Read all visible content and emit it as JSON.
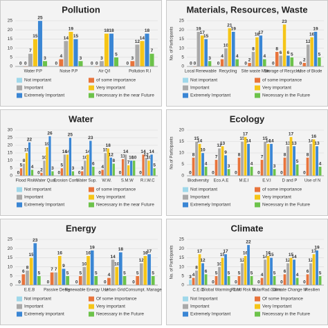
{
  "chart_data": [
    {
      "type": "bar",
      "title": "Pollution",
      "categories": [
        "Water P.P",
        "Noise P.P",
        "Air Q/I",
        "Pollution R.I"
      ],
      "series": [
        {
          "name": "Not important",
          "color": "#9fd8ea",
          "values": [
            0,
            0,
            0,
            0
          ]
        },
        {
          "name": "of some importance",
          "color": "#e8743b",
          "values": [
            0,
            4,
            0,
            3
          ]
        },
        {
          "name": "Important",
          "color": "#a9a9a9",
          "values": [
            7,
            14,
            3,
            12
          ]
        },
        {
          "name": "Very important",
          "color": "#f5c518",
          "values": [
            15,
            19,
            18,
            14
          ]
        },
        {
          "name": "Extremely Important",
          "color": "#3a86d4",
          "values": [
            25,
            15,
            18,
            18
          ]
        },
        {
          "name": "Necessary in the near Future",
          "color": "#6cc24a",
          "values": [
            3,
            3,
            5,
            7
          ]
        }
      ],
      "ylim": [
        0,
        25
      ],
      "yticks": [
        0,
        5,
        10,
        15,
        20,
        25
      ],
      "grid": true
    },
    {
      "type": "bar",
      "title": "Materials, Resources, Waste",
      "y_label": "No. of Participants",
      "categories": [
        "Local Renewable",
        "Recycling",
        "Site waste Man",
        "Storage of Recycled",
        "Use of Biode"
      ],
      "series": [
        {
          "name": "Not important",
          "color": "#9fd8ea",
          "values": [
            0,
            0,
            0,
            0,
            0
          ]
        },
        {
          "name": "of some importance",
          "color": "#e8743b",
          "values": [
            0,
            4,
            2,
            8,
            2
          ]
        },
        {
          "name": "Important",
          "color": "#a9a9a9",
          "values": [
            19,
            10,
            8,
            6,
            12
          ]
        },
        {
          "name": "Very important",
          "color": "#f5c518",
          "values": [
            17,
            21,
            16,
            23,
            16
          ]
        },
        {
          "name": "Extremely Important",
          "color": "#3a86d4",
          "values": [
            15,
            19,
            17,
            6,
            19
          ]
        },
        {
          "name": "Necessary in the Future",
          "color": "#6cc24a",
          "values": [
            3,
            4,
            4,
            5,
            5
          ]
        }
      ],
      "ylim": [
        0,
        25
      ],
      "yticks": [
        0,
        5,
        10,
        15,
        20,
        25
      ],
      "grid": true
    },
    {
      "type": "bar",
      "title": "Water",
      "categories": [
        "Flood Risk",
        "Water Qual.",
        "Erosion Cont.",
        "Water Sup.",
        "W.W.",
        "S.M.W",
        "R.I.W.C"
      ],
      "series": [
        {
          "name": "Not important",
          "color": "#9fd8ea",
          "values": [
            0,
            0,
            0,
            0,
            0,
            0,
            0
          ]
        },
        {
          "name": "of some importance",
          "color": "#e8743b",
          "values": [
            5,
            2,
            5,
            3,
            4,
            11,
            14
          ]
        },
        {
          "name": "Important",
          "color": "#a9a9a9",
          "values": [
            8,
            10,
            14,
            10,
            15,
            14,
            12
          ]
        },
        {
          "name": "Very important",
          "color": "#f5c518",
          "values": [
            15,
            19,
            14,
            14,
            18,
            7,
            10
          ]
        },
        {
          "name": "Extremely Important",
          "color": "#3a86d4",
          "values": [
            22,
            26,
            25,
            23,
            12,
            10,
            14
          ]
        },
        {
          "name": "Necessary in the near Future",
          "color": "#6cc24a",
          "values": [
            4,
            3,
            3,
            6,
            8,
            10,
            5
          ]
        }
      ],
      "ylim": [
        0,
        30
      ],
      "yticks": [
        0,
        5,
        10,
        15,
        20,
        25,
        30
      ],
      "grid": true
    },
    {
      "type": "bar",
      "title": "Ecology",
      "y_label": "No.of Participants",
      "categories": [
        "Biodiversity",
        "Eco.A.E",
        "M.E.I",
        "E.V.I",
        "D and P",
        "Use of N"
      ],
      "series": [
        {
          "name": "Not important",
          "color": "#9fd8ea",
          "values": [
            0,
            0,
            0,
            0,
            0,
            0
          ]
        },
        {
          "name": "of some importance",
          "color": "#e8743b",
          "values": [
            8,
            7,
            8,
            7,
            8,
            8
          ]
        },
        {
          "name": "Important",
          "color": "#a9a9a9",
          "values": [
            15,
            12,
            15,
            15,
            13,
            14
          ]
        },
        {
          "name": "Very important",
          "color": "#f5c518",
          "values": [
            14,
            13,
            17,
            14,
            17,
            16
          ]
        },
        {
          "name": "Extremely Important",
          "color": "#3a86d4",
          "values": [
            10,
            9,
            14,
            14,
            13,
            13
          ]
        },
        {
          "name": "Necessary in the Future",
          "color": "#6cc24a",
          "values": [
            4,
            3,
            4,
            3,
            5,
            4
          ]
        }
      ],
      "ylim": [
        0,
        20
      ],
      "yticks": [
        0,
        5,
        10,
        15,
        20
      ],
      "grid": true
    },
    {
      "type": "bar",
      "title": "Energy",
      "categories": [
        "E.E.B",
        "Passive Design",
        "Renewable Energy Use",
        "Urban Grid",
        "Consumpt. Manage"
      ],
      "series": [
        {
          "name": "Not important",
          "color": "#9fd8ea",
          "values": [
            0,
            0,
            0,
            0,
            0
          ]
        },
        {
          "name": "Of some importance",
          "color": "#e8743b",
          "values": [
            6,
            7,
            5,
            4,
            5
          ]
        },
        {
          "name": "Important",
          "color": "#a9a9a9",
          "values": [
            8,
            7,
            10,
            14,
            12
          ]
        },
        {
          "name": "Very important",
          "color": "#f5c518",
          "values": [
            15,
            16,
            16,
            10,
            16
          ]
        },
        {
          "name": "Extremely important",
          "color": "#3a86d4",
          "values": [
            23,
            9,
            19,
            18,
            17
          ]
        },
        {
          "name": "Necessary in the Future",
          "color": "#6cc24a",
          "values": [
            5,
            5,
            5,
            5,
            5
          ]
        }
      ],
      "ylim": [
        0,
        25
      ],
      "yticks": [
        0,
        5,
        10,
        15,
        20,
        25
      ],
      "grid": true
    },
    {
      "type": "bar",
      "title": "Climate",
      "y_label": "No. of Participants",
      "categories": [
        "C.E.O",
        "Global Warming C.M",
        "Flood Risk M.",
        "SolarRad.Gains",
        "Climate Change M",
        "Resilien"
      ],
      "series": [
        {
          "name": "Not Important",
          "color": "#9fd8ea",
          "values": [
            3,
            0,
            0,
            0,
            0,
            0
          ]
        },
        {
          "name": "Of some Importance",
          "color": "#e8743b",
          "values": [
            4,
            5,
            5,
            4,
            6,
            6
          ]
        },
        {
          "name": "Important",
          "color": "#a9a9a9",
          "values": [
            8,
            10,
            12,
            14,
            12,
            12
          ]
        },
        {
          "name": "Very Important",
          "color": "#f5c518",
          "values": [
            17,
            15,
            16,
            16,
            15,
            17
          ]
        },
        {
          "name": "Extremely Important",
          "color": "#3a86d4",
          "values": [
            12,
            17,
            22,
            15,
            14,
            19
          ]
        },
        {
          "name": "Necessary in the Future",
          "color": "#6cc24a",
          "values": [
            6,
            5,
            5,
            5,
            4,
            5
          ]
        }
      ],
      "ylim": [
        0,
        25
      ],
      "yticks": [
        0,
        5,
        10,
        15,
        20,
        25
      ],
      "grid": true
    }
  ]
}
